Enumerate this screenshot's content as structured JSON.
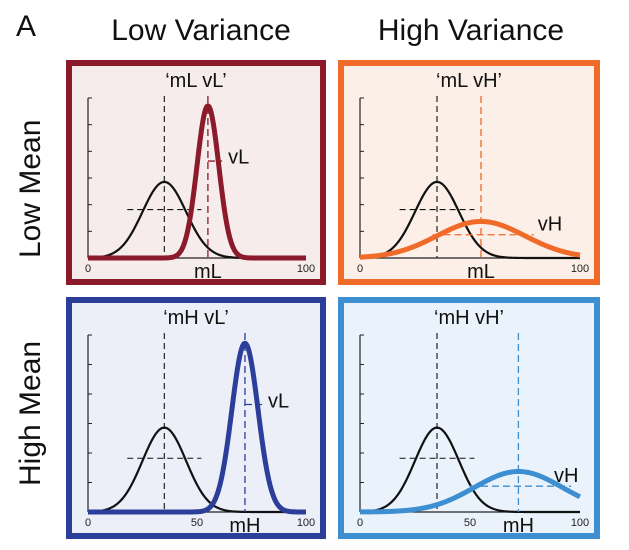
{
  "figure": {
    "panel_letter": "A",
    "col_titles": [
      "Low Variance",
      "High Variance"
    ],
    "row_titles": [
      "Low Mean",
      "High Mean"
    ],
    "colors": {
      "baseline_curve": "#111111",
      "mL_vL": "#8b1a2b",
      "mL_vH": "#f06a2a",
      "mH_vL": "#2b3f9a",
      "mH_vH": "#3d8fd1"
    }
  },
  "panels": [
    {
      "id": "mL_vL",
      "title": "‘mL vL’",
      "border": "#8b1a2b",
      "bg": "#f6eceb",
      "curve_color": "#8b1a2b",
      "x_ticks": [
        "0",
        "100"
      ],
      "mean_label": "mL",
      "var_label": "vL",
      "baseline": {
        "mean": 35,
        "sd": 10,
        "peak": 1.0
      },
      "curve": {
        "mean": 55,
        "sd": 5,
        "peak": 2.0
      }
    },
    {
      "id": "mL_vH",
      "title": "‘mL vH’",
      "border": "#f06a2a",
      "bg": "#fcefe7",
      "curve_color": "#f06a2a",
      "x_ticks": [
        "0",
        "100"
      ],
      "mean_label": "mL",
      "var_label": "vH",
      "baseline": {
        "mean": 35,
        "sd": 10,
        "peak": 1.0
      },
      "curve": {
        "mean": 55,
        "sd": 20,
        "peak": 0.48
      }
    },
    {
      "id": "mH_vL",
      "title": "‘mH vL’",
      "border": "#2b3f9a",
      "bg": "#eceef8",
      "curve_color": "#2b3f9a",
      "x_ticks": [
        "0",
        "50",
        "100"
      ],
      "mean_label": "mH",
      "var_label": "vL",
      "baseline": {
        "mean": 35,
        "sd": 10,
        "peak": 1.0
      },
      "curve": {
        "mean": 72,
        "sd": 6,
        "peak": 2.0
      }
    },
    {
      "id": "mH_vH",
      "title": "‘mH vH’",
      "border": "#3d8fd1",
      "bg": "#eaf2fb",
      "curve_color": "#3d8fd1",
      "x_ticks": [
        "0",
        "50",
        "100"
      ],
      "mean_label": "mH",
      "var_label": "vH",
      "baseline": {
        "mean": 35,
        "sd": 10,
        "peak": 1.0
      },
      "curve": {
        "mean": 72,
        "sd": 20,
        "peak": 0.48
      }
    }
  ]
}
